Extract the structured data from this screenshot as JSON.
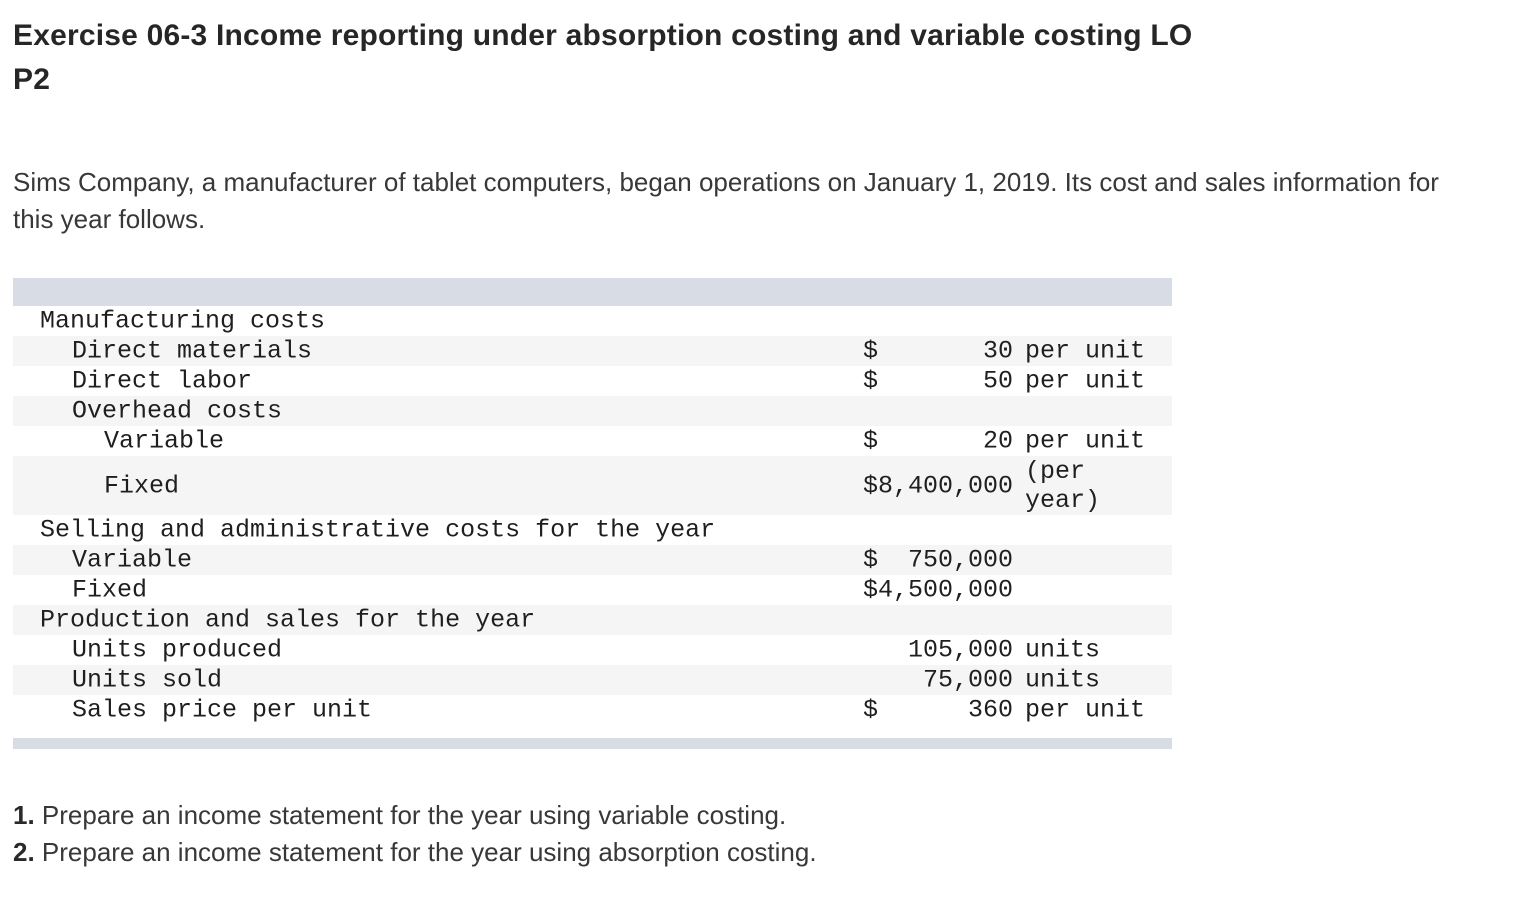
{
  "title": {
    "line1": "Exercise 06-3 Income reporting under absorption costing and variable costing LO",
    "line2": "P2"
  },
  "intro": "Sims Company, a manufacturer of tablet computers, began operations on January 1, 2019. Its cost and sales information for this year follows.",
  "table": {
    "colors": {
      "band": "#d8dce5",
      "stripe": "#f5f5f6"
    },
    "rows": [
      {
        "label": "Manufacturing costs",
        "indent": 1,
        "value": "",
        "unit": ""
      },
      {
        "label": "Direct materials",
        "indent": 2,
        "value": "$       30",
        "unit": "per unit"
      },
      {
        "label": "Direct labor",
        "indent": 2,
        "value": "$       50",
        "unit": "per unit"
      },
      {
        "label": "Overhead costs",
        "indent": 2,
        "value": "",
        "unit": ""
      },
      {
        "label": "Variable",
        "indent": 3,
        "value": "$       20",
        "unit": "per unit"
      },
      {
        "label": "Fixed",
        "indent": 3,
        "value": "$8,400,000",
        "unit": "(per year)",
        "tall": true
      },
      {
        "label": "Selling and administrative costs for the year",
        "indent": 1,
        "value": "",
        "unit": ""
      },
      {
        "label": "Variable",
        "indent": 2,
        "value": "$  750,000",
        "unit": ""
      },
      {
        "label": "Fixed",
        "indent": 2,
        "value": "$4,500,000",
        "unit": ""
      },
      {
        "label": "Production and sales for the year",
        "indent": 1,
        "value": "",
        "unit": ""
      },
      {
        "label": "Units produced",
        "indent": 2,
        "value": "   105,000",
        "unit": "units"
      },
      {
        "label": "Units sold",
        "indent": 2,
        "value": "    75,000",
        "unit": "units"
      },
      {
        "label": "Sales price per unit",
        "indent": 2,
        "value": "$      360",
        "unit": "per unit"
      }
    ]
  },
  "instructions": [
    {
      "number": "1.",
      "text": "Prepare an income statement for the year using variable costing."
    },
    {
      "number": "2.",
      "text": "Prepare an income statement for the year using absorption costing."
    }
  ]
}
